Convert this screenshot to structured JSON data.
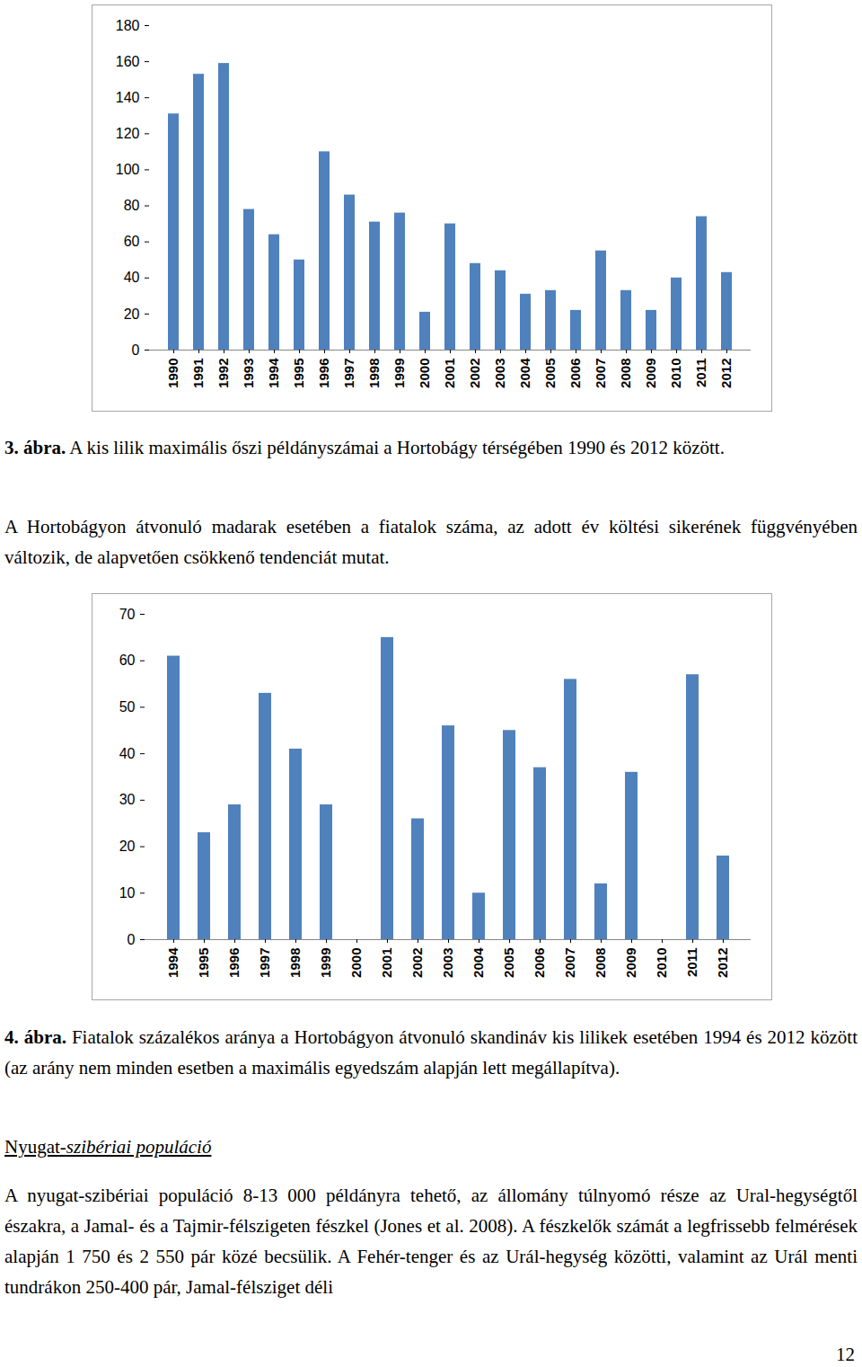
{
  "chart_data": [
    {
      "type": "bar",
      "categories": [
        "1990",
        "1991",
        "1992",
        "1993",
        "1994",
        "1995",
        "1996",
        "1997",
        "1998",
        "1999",
        "2000",
        "2001",
        "2002",
        "2003",
        "2004",
        "2005",
        "2006",
        "2007",
        "2008",
        "2009",
        "2010",
        "2011",
        "2012"
      ],
      "values": [
        131,
        153,
        159,
        78,
        64,
        50,
        110,
        86,
        71,
        76,
        21,
        70,
        48,
        44,
        31,
        33,
        22,
        55,
        33,
        22,
        40,
        74,
        43
      ],
      "color": "#4f81bd",
      "ylim": [
        0,
        180
      ],
      "yticks": [
        0,
        20,
        40,
        60,
        80,
        100,
        120,
        140,
        160,
        180
      ],
      "grid": false
    },
    {
      "type": "bar",
      "categories": [
        "1994",
        "1995",
        "1996",
        "1997",
        "1998",
        "1999",
        "2000",
        "2001",
        "2002",
        "2003",
        "2004",
        "2005",
        "2006",
        "2007",
        "2008",
        "2009",
        "2010",
        "2011",
        "2012"
      ],
      "values": [
        61,
        23,
        29,
        53,
        41,
        29,
        null,
        65,
        26,
        46,
        10,
        45,
        37,
        56,
        12,
        36,
        null,
        57,
        18
      ],
      "color": "#4f81bd",
      "ylim": [
        0,
        70
      ],
      "yticks": [
        0,
        10,
        20,
        30,
        40,
        50,
        60,
        70
      ],
      "grid": false
    }
  ],
  "document": {
    "caption_1": {
      "label": "3. ábra.",
      "text": "A kis lilik maximális őszi példányszámai a Hortobágy térségében 1990 és 2012 között."
    },
    "paragraph_1": "A Hortobágyon átvonuló madarak esetében a fiatalok száma, az adott év költési sikerének függvényében változik, de alapvetően csökkenő tendenciát mutat.",
    "caption_2": {
      "label": "4. ábra.",
      "text": "Fiatalok százalékos aránya a Hortobágyon átvonuló skandináv kis lilikek esetében 1994 és 2012 között (az arány nem minden esetben a maximális egyedszám alapján lett megállapítva)."
    },
    "heading": {
      "plain": "Nyugat-",
      "italic": "szibériai populáció"
    },
    "paragraph_2": "A nyugat-szibériai populáció 8-13 000 példányra tehető, az állomány túlnyomó része az Ural-hegységtől északra, a Jamal- és a Tajmir-félszigeten fészkel (Jones et al. 2008). A fészkelők számát a legfrissebb felmérések alapján 1 750 és 2 550 pár közé becsülik. A Fehér-tenger és az Urál-hegység közötti, valamint az Urál menti tundrákon 250-400 pár, Jamal-félsziget déli",
    "page_number": "12"
  }
}
